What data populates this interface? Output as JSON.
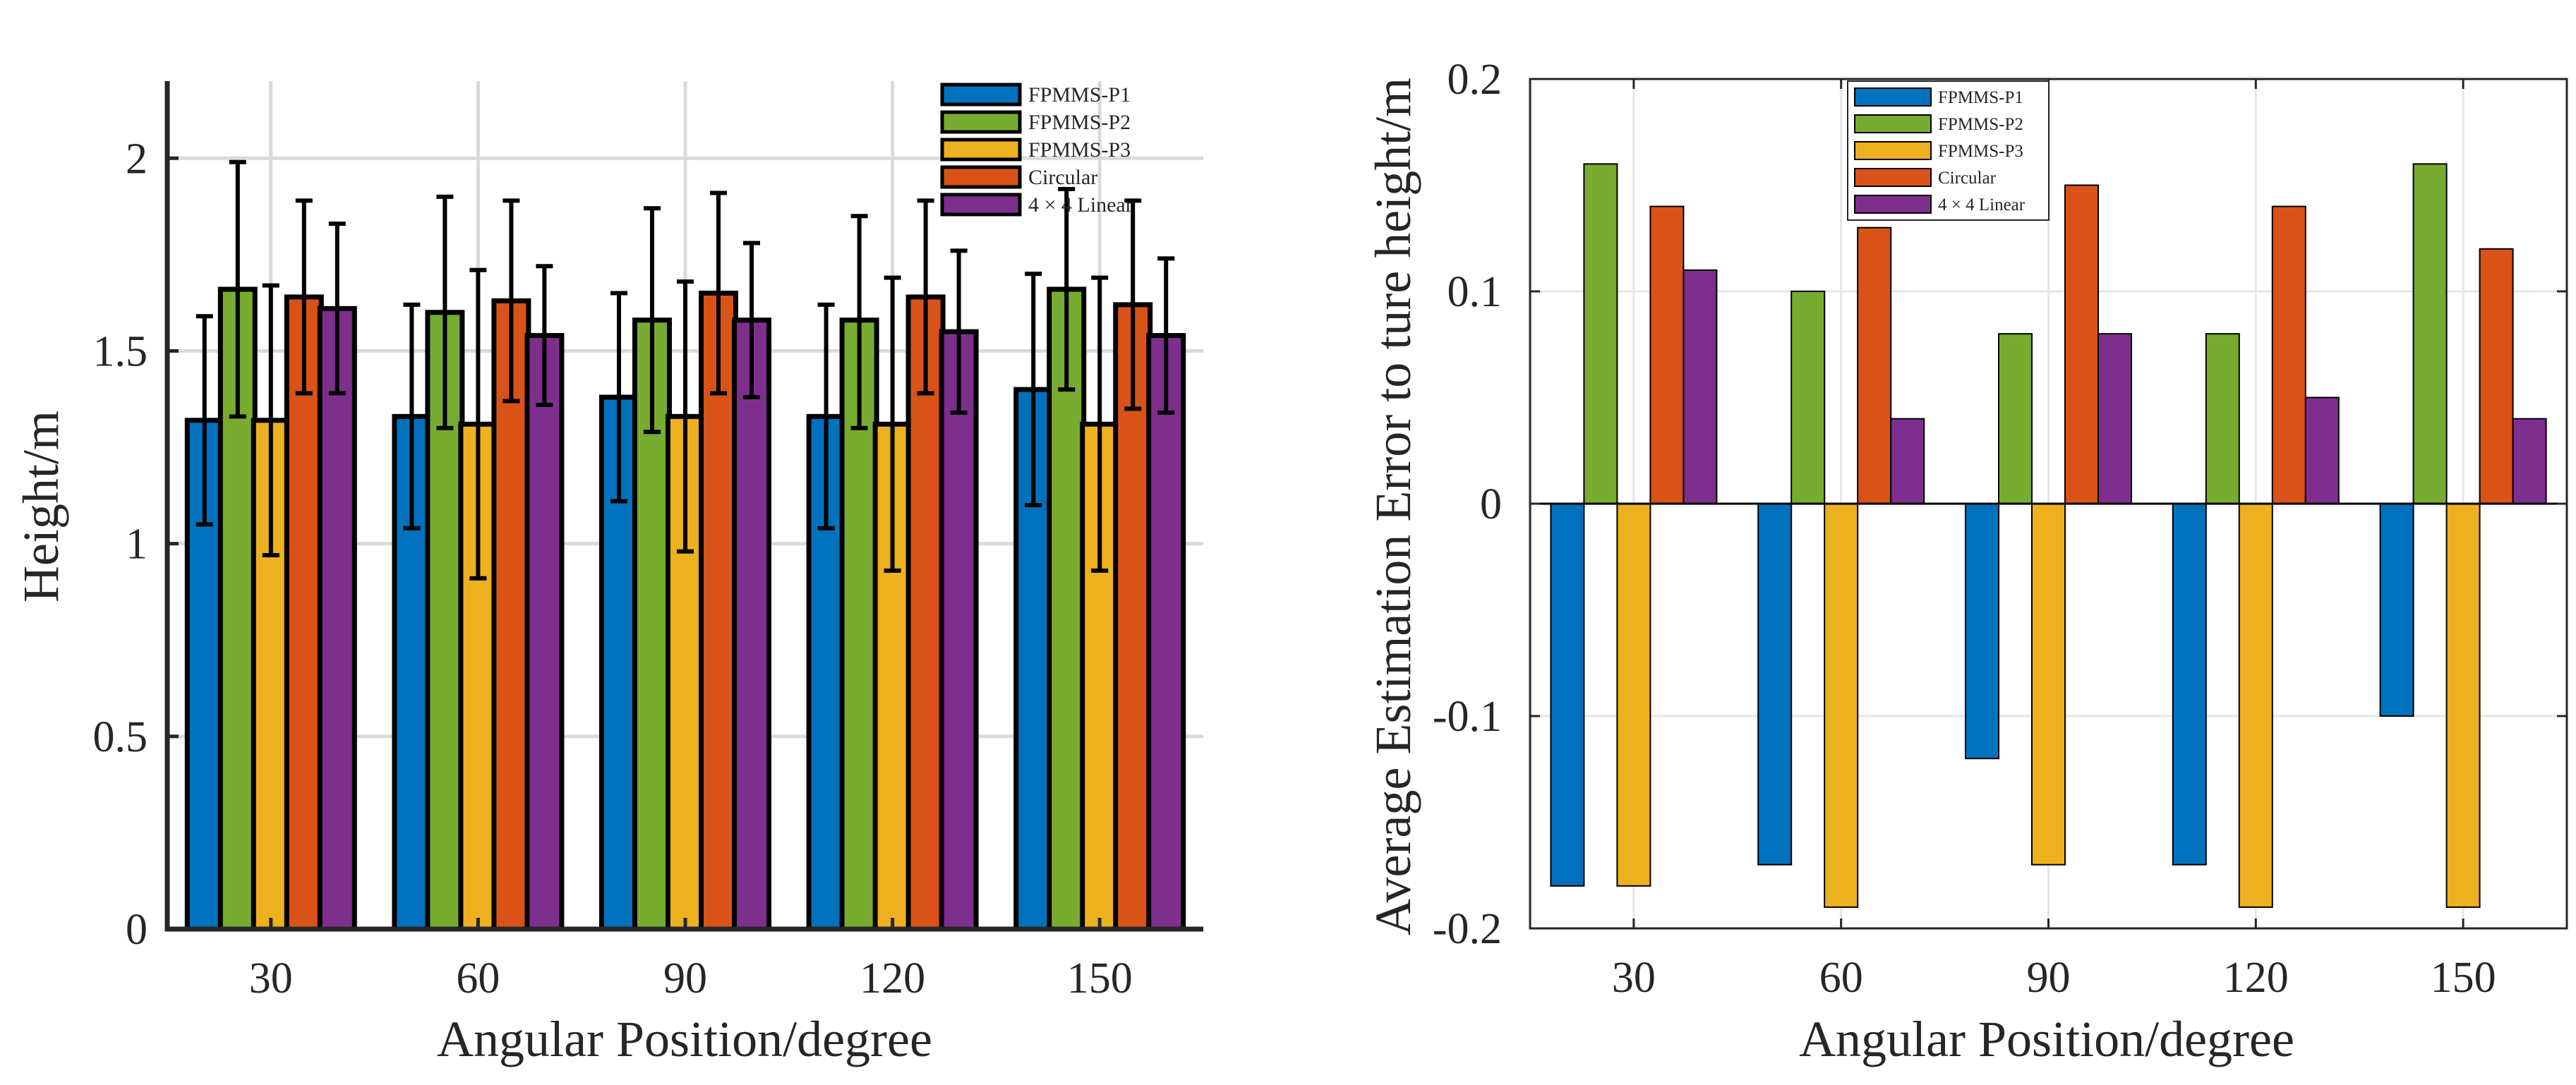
{
  "chart_data": [
    {
      "type": "bar",
      "chart_id": "height",
      "categories": [
        "30",
        "60",
        "90",
        "120",
        "150"
      ],
      "series": [
        {
          "name": "FPMMS-P1",
          "color": "#0072BD",
          "values": [
            1.32,
            1.33,
            1.38,
            1.33,
            1.4
          ],
          "err_low": [
            1.05,
            1.04,
            1.11,
            1.04,
            1.1
          ],
          "err_high": [
            1.59,
            1.62,
            1.65,
            1.62,
            1.7
          ]
        },
        {
          "name": "FPMMS-P2",
          "color": "#77AC30",
          "values": [
            1.66,
            1.6,
            1.58,
            1.58,
            1.66
          ],
          "err_low": [
            1.33,
            1.3,
            1.29,
            1.3,
            1.4
          ],
          "err_high": [
            1.99,
            1.9,
            1.87,
            1.85,
            1.92
          ]
        },
        {
          "name": "FPMMS-P3",
          "color": "#EDB120",
          "values": [
            1.32,
            1.31,
            1.33,
            1.31,
            1.31
          ],
          "err_low": [
            0.97,
            0.91,
            0.98,
            0.93,
            0.93
          ],
          "err_high": [
            1.67,
            1.71,
            1.68,
            1.69,
            1.69
          ]
        },
        {
          "name": "Circular",
          "color": "#D95319",
          "values": [
            1.64,
            1.63,
            1.65,
            1.64,
            1.62
          ],
          "err_low": [
            1.39,
            1.37,
            1.39,
            1.39,
            1.35
          ],
          "err_high": [
            1.89,
            1.89,
            1.91,
            1.89,
            1.89
          ]
        },
        {
          "name": "4 × 4 Linear",
          "color": "#7E2F8E",
          "values": [
            1.61,
            1.54,
            1.58,
            1.55,
            1.54
          ],
          "err_low": [
            1.39,
            1.36,
            1.38,
            1.34,
            1.34
          ],
          "err_high": [
            1.83,
            1.72,
            1.78,
            1.76,
            1.74
          ]
        }
      ],
      "xlabel": "Angular Position/degree",
      "ylabel": "Height/m",
      "ylim": [
        0,
        2.2
      ],
      "yticks": [
        "0",
        "0.5",
        "1",
        "1.5",
        "2"
      ],
      "grid": true,
      "legend_position": "top-right"
    },
    {
      "type": "bar",
      "chart_id": "error",
      "categories": [
        "30",
        "60",
        "90",
        "120",
        "150"
      ],
      "series": [
        {
          "name": "FPMMS-P1",
          "color": "#0072BD",
          "values": [
            -0.18,
            -0.17,
            -0.12,
            -0.17,
            -0.1
          ]
        },
        {
          "name": "FPMMS-P2",
          "color": "#77AC30",
          "values": [
            0.16,
            0.1,
            0.08,
            0.08,
            0.16
          ]
        },
        {
          "name": "FPMMS-P3",
          "color": "#EDB120",
          "values": [
            -0.18,
            -0.19,
            -0.17,
            -0.19,
            -0.19
          ]
        },
        {
          "name": "Circular",
          "color": "#D95319",
          "values": [
            0.14,
            0.13,
            0.15,
            0.14,
            0.12
          ]
        },
        {
          "name": "4 × 4 Linear",
          "color": "#7E2F8E",
          "values": [
            0.11,
            0.04,
            0.08,
            0.05,
            0.04
          ]
        }
      ],
      "xlabel": "Angular Position/degree",
      "ylabel": "Average Estimation Error to ture height/m",
      "ylim": [
        -0.2,
        0.2
      ],
      "yticks": [
        "-0.2",
        "-0.1",
        "0",
        "0.1",
        "0.2"
      ],
      "grid": true,
      "legend_position": "top-center"
    }
  ]
}
